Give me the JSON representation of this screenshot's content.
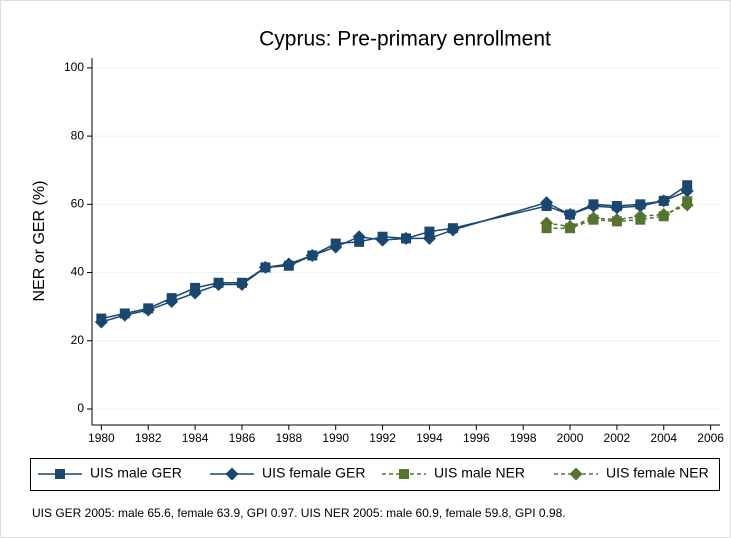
{
  "chart_data": {
    "type": "line",
    "title": "Cyprus: Pre-primary enrollment",
    "y_label": "NER or GER (%)",
    "note": "UIS GER 2005: male 65.6, female 63.9, GPI 0.97. UIS NER 2005: male 60.9, female 59.8, GPI 0.98.",
    "x": [
      1980,
      1981,
      1982,
      1983,
      1984,
      1985,
      1986,
      1987,
      1988,
      1989,
      1990,
      1991,
      1992,
      1993,
      1994,
      1995,
      1999,
      2000,
      2001,
      2002,
      2003,
      2004,
      2005
    ],
    "series": [
      {
        "name": "UIS male GER",
        "color": "#1a476f",
        "marker": "square",
        "dash": false,
        "values": [
          26.5,
          28,
          29.5,
          32.5,
          35.5,
          37,
          37,
          41.5,
          42,
          45,
          48.5,
          49,
          50.5,
          50,
          52,
          53,
          59.5,
          57,
          60,
          59.5,
          60,
          61,
          65.6
        ]
      },
      {
        "name": "UIS female GER",
        "color": "#1a476f",
        "marker": "diamond",
        "dash": false,
        "values": [
          25.5,
          27.5,
          29,
          31.5,
          34,
          36.5,
          36.5,
          41.5,
          42.5,
          45,
          47.5,
          50.5,
          49.5,
          50,
          50,
          52.5,
          60.5,
          57,
          59.5,
          59,
          59.5,
          61,
          63.9
        ]
      },
      {
        "name": "UIS male NER",
        "color": "#55752f",
        "marker": "square",
        "dash": true,
        "values": [
          null,
          null,
          null,
          null,
          null,
          null,
          null,
          null,
          null,
          null,
          null,
          null,
          null,
          null,
          null,
          null,
          53,
          53,
          55.5,
          55,
          55.5,
          56.5,
          60.9
        ]
      },
      {
        "name": "UIS female NER",
        "color": "#55752f",
        "marker": "diamond",
        "dash": true,
        "values": [
          null,
          null,
          null,
          null,
          null,
          null,
          null,
          null,
          null,
          null,
          null,
          null,
          null,
          null,
          null,
          null,
          54.5,
          53.5,
          56,
          55.5,
          56.5,
          57,
          59.8
        ]
      }
    ],
    "xlim": [
      1979.6,
      2006.4
    ],
    "xticks": [
      1980,
      1982,
      1984,
      1986,
      1988,
      1990,
      1992,
      1994,
      1996,
      1998,
      2000,
      2002,
      2004,
      2006
    ],
    "ylim": [
      -4.7,
      102.9
    ],
    "yticks": [
      0,
      20,
      40,
      60,
      80,
      100
    ],
    "grid": true,
    "legend": "bottom"
  }
}
